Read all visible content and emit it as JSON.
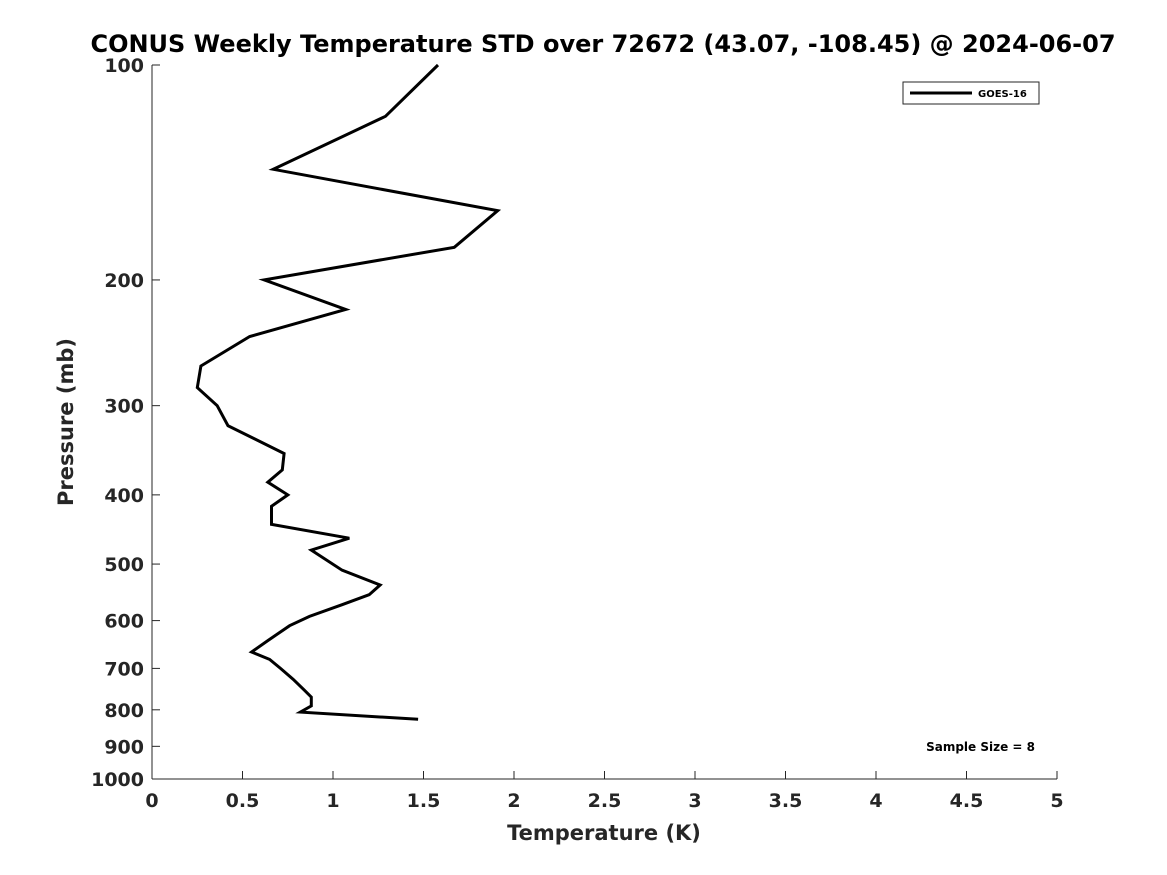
{
  "chart_data": {
    "type": "line",
    "title": "CONUS Weekly Temperature STD over 72672 (43.07, -108.45) @ 2024-06-07",
    "xlabel": "Temperature (K)",
    "ylabel": "Pressure (mb)",
    "xlim": [
      0,
      5
    ],
    "ylim": [
      100,
      1000
    ],
    "y_scale": "log",
    "y_reversed": true,
    "x_ticks": [
      "0",
      "0.5",
      "1",
      "1.5",
      "2",
      "2.5",
      "3",
      "3.5",
      "4",
      "4.5",
      "5"
    ],
    "x_tick_values": [
      0,
      0.5,
      1,
      1.5,
      2,
      2.5,
      3,
      3.5,
      4,
      4.5,
      5
    ],
    "y_ticks": [
      "100",
      "200",
      "300",
      "400",
      "500",
      "600",
      "700",
      "800",
      "900",
      "1000"
    ],
    "y_tick_values": [
      100,
      200,
      300,
      400,
      500,
      600,
      700,
      800,
      900,
      1000
    ],
    "grid": false,
    "legend_position": "top-right",
    "series": [
      {
        "name": "GOES-16",
        "color": "#000000",
        "points": [
          {
            "x": 1.58,
            "y": 100
          },
          {
            "x": 1.29,
            "y": 118
          },
          {
            "x": 0.67,
            "y": 140
          },
          {
            "x": 1.91,
            "y": 160
          },
          {
            "x": 1.67,
            "y": 180
          },
          {
            "x": 0.62,
            "y": 200
          },
          {
            "x": 1.07,
            "y": 220
          },
          {
            "x": 0.54,
            "y": 240
          },
          {
            "x": 0.27,
            "y": 264
          },
          {
            "x": 0.25,
            "y": 283
          },
          {
            "x": 0.36,
            "y": 300
          },
          {
            "x": 0.42,
            "y": 320
          },
          {
            "x": 0.73,
            "y": 350
          },
          {
            "x": 0.72,
            "y": 369
          },
          {
            "x": 0.64,
            "y": 384
          },
          {
            "x": 0.75,
            "y": 400
          },
          {
            "x": 0.66,
            "y": 415
          },
          {
            "x": 0.66,
            "y": 440
          },
          {
            "x": 1.09,
            "y": 460
          },
          {
            "x": 0.88,
            "y": 478
          },
          {
            "x": 1.05,
            "y": 510
          },
          {
            "x": 1.26,
            "y": 535
          },
          {
            "x": 1.2,
            "y": 552
          },
          {
            "x": 1.05,
            "y": 570
          },
          {
            "x": 0.87,
            "y": 592
          },
          {
            "x": 0.76,
            "y": 610
          },
          {
            "x": 0.64,
            "y": 640
          },
          {
            "x": 0.55,
            "y": 664
          },
          {
            "x": 0.65,
            "y": 680
          },
          {
            "x": 0.71,
            "y": 700
          },
          {
            "x": 0.78,
            "y": 725
          },
          {
            "x": 0.84,
            "y": 750
          },
          {
            "x": 0.88,
            "y": 768
          },
          {
            "x": 0.88,
            "y": 790
          },
          {
            "x": 0.82,
            "y": 806
          },
          {
            "x": 1.47,
            "y": 825
          }
        ]
      }
    ],
    "annotation": "Sample Size = 8"
  }
}
